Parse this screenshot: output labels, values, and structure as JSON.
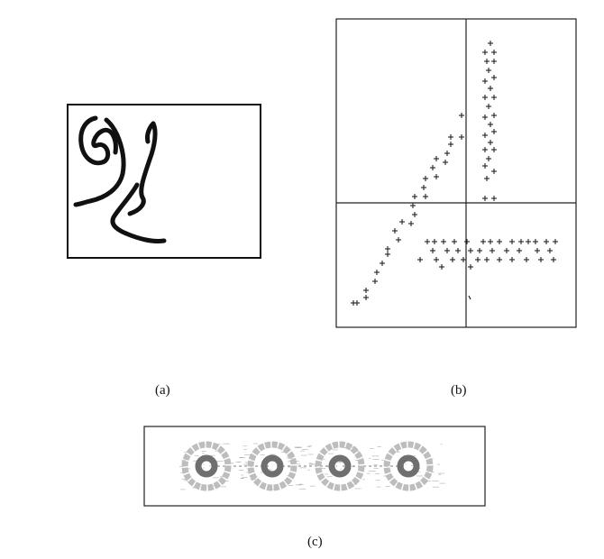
{
  "captions": {
    "a": "(a)",
    "b": "(b)",
    "c": "(c)"
  },
  "colors": {
    "ink": "#111111",
    "ring_light": "#bdbdbd",
    "ring_dark": "#6f6f6f"
  },
  "panel_c": {
    "ring_count": 4
  }
}
